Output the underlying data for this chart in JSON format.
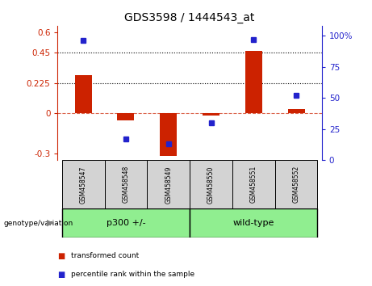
{
  "title": "GDS3598 / 1444543_at",
  "samples": [
    "GSM458547",
    "GSM458548",
    "GSM458549",
    "GSM458550",
    "GSM458551",
    "GSM458552"
  ],
  "transformed_counts": [
    0.285,
    -0.055,
    -0.32,
    -0.02,
    0.46,
    0.03
  ],
  "percentile_ranks": [
    96,
    17,
    13,
    30,
    97,
    52
  ],
  "groups": [
    {
      "label": "p300 +/-",
      "indices": [
        0,
        1,
        2
      ],
      "color": "#90ee90"
    },
    {
      "label": "wild-type",
      "indices": [
        3,
        4,
        5
      ],
      "color": "#90ee90"
    }
  ],
  "bar_color": "#cc2200",
  "dot_color": "#2222cc",
  "ylim_left": [
    -0.35,
    0.65
  ],
  "ylim_right": [
    0,
    108
  ],
  "yticks_left": [
    -0.3,
    0.0,
    0.225,
    0.45,
    0.6
  ],
  "yticks_right": [
    0,
    25,
    50,
    75,
    100
  ],
  "hlines": [
    0.225,
    0.45
  ],
  "hline_zero": 0.0,
  "bar_width": 0.4,
  "sample_box_color": "#d3d3d3",
  "genotype_label": "genotype/variation",
  "legend_items": [
    {
      "label": "transformed count",
      "color": "#cc2200"
    },
    {
      "label": "percentile rank within the sample",
      "color": "#2222cc"
    }
  ]
}
